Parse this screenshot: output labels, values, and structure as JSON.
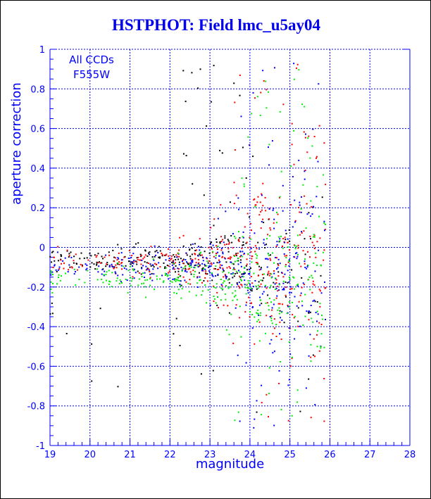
{
  "title": "HSTPHOT: Field lmc_u5ay04",
  "annotation": {
    "line1": "All CCDs",
    "line2": "F555W"
  },
  "colors": {
    "frame_and_text": "#0000ff",
    "title": "#0000ee",
    "background": "#ffffff",
    "page_border": "#000000"
  },
  "chart_data": {
    "type": "scatter",
    "title": "HSTPHOT: Field lmc_u5ay04",
    "xlabel": "magnitude",
    "ylabel": "aperture correction",
    "xlim": [
      19,
      28
    ],
    "ylim": [
      -1,
      1
    ],
    "grid": "dotted blue lines at every major tick",
    "legend_position": "none (annotation text top-left: All CCDs / F555W)",
    "x_major_ticks": [
      19,
      20,
      21,
      22,
      23,
      24,
      25,
      26,
      27,
      28
    ],
    "x_tick_labels": [
      "19",
      "20",
      "21",
      "22",
      "23",
      "24",
      "25",
      "26",
      "27",
      "28"
    ],
    "x_minor_step": 0.2,
    "y_major_ticks": [
      -1,
      -0.8,
      -0.6,
      -0.4,
      -0.2,
      0,
      0.2,
      0.4,
      0.6,
      0.8,
      1
    ],
    "y_tick_labels": [
      "-1",
      "-0.8",
      "-0.6",
      "-0.4",
      "-0.2",
      "0",
      "0.2",
      "0.4",
      "0.6",
      "0.8",
      "1"
    ],
    "y_minor_step": 0.05,
    "point_shape": "2px filled square",
    "data_extends_to_magnitude": 25.9,
    "description": "Aperture corrections for four WFPC2 CCD chips vs magnitude: tight band near -0.05 to -0.2 for mag 19-23 (green chip lowest ~-0.15), scatter fanning out to +/-0.95 for mag 23.5-25.9, no data beyond mag 26.",
    "series": [
      {
        "name": "ccd-1-black",
        "color": "#000000",
        "band_center": -0.065,
        "bins": [
          [
            19,
            20,
            26,
            0.03
          ],
          [
            20,
            21,
            30,
            0.032
          ],
          [
            21,
            22,
            42,
            0.038
          ],
          [
            22,
            23,
            50,
            0.05
          ],
          [
            23,
            24,
            50,
            0.08
          ],
          [
            24,
            25,
            35,
            0.13
          ],
          [
            25,
            25.9,
            15,
            0.18
          ]
        ],
        "halos": [
          [
            22.3,
            24.4,
            0.18,
            0.92,
            20
          ],
          [
            19.0,
            23.6,
            -0.74,
            -0.26,
            15
          ],
          [
            23.8,
            25.6,
            -0.85,
            -0.3,
            5
          ]
        ]
      },
      {
        "name": "ccd-2-red",
        "color": "#ff0000",
        "band_center": -0.075,
        "bins": [
          [
            19,
            20,
            20,
            0.032
          ],
          [
            20,
            21,
            26,
            0.035
          ],
          [
            21,
            22,
            36,
            0.042
          ],
          [
            22,
            23,
            55,
            0.065
          ],
          [
            23,
            24,
            80,
            0.11
          ],
          [
            24,
            25,
            85,
            0.17
          ],
          [
            25,
            25.9,
            58,
            0.22
          ]
        ],
        "halos": [
          [
            23.6,
            25.9,
            0.15,
            0.93,
            28
          ],
          [
            23.5,
            25.9,
            -0.9,
            -0.27,
            20
          ]
        ]
      },
      {
        "name": "ccd-3-blue",
        "color": "#0000ff",
        "band_center": -0.105,
        "bins": [
          [
            19,
            20,
            20,
            0.03
          ],
          [
            20,
            21,
            26,
            0.033
          ],
          [
            21,
            22,
            36,
            0.04
          ],
          [
            22,
            23,
            50,
            0.055
          ],
          [
            23,
            24,
            65,
            0.1
          ],
          [
            24,
            25,
            70,
            0.16
          ],
          [
            25,
            25.9,
            48,
            0.21
          ]
        ],
        "halos": [
          [
            23.6,
            25.9,
            0.15,
            0.93,
            22
          ],
          [
            23.5,
            25.9,
            -0.95,
            -0.27,
            24
          ]
        ]
      },
      {
        "name": "ccd-4-green",
        "color": "#00ee00",
        "band_center": -0.15,
        "bins": [
          [
            19,
            20,
            18,
            0.035
          ],
          [
            20,
            21,
            24,
            0.038
          ],
          [
            21,
            22,
            32,
            0.042
          ],
          [
            22,
            23,
            45,
            0.055
          ],
          [
            23,
            24,
            65,
            0.1
          ],
          [
            24,
            25,
            70,
            0.16
          ],
          [
            25,
            25.9,
            52,
            0.2
          ]
        ],
        "halos": [
          [
            23.6,
            25.9,
            0.15,
            0.9,
            26
          ],
          [
            23.5,
            25.9,
            -0.88,
            -0.27,
            20
          ]
        ]
      }
    ]
  }
}
